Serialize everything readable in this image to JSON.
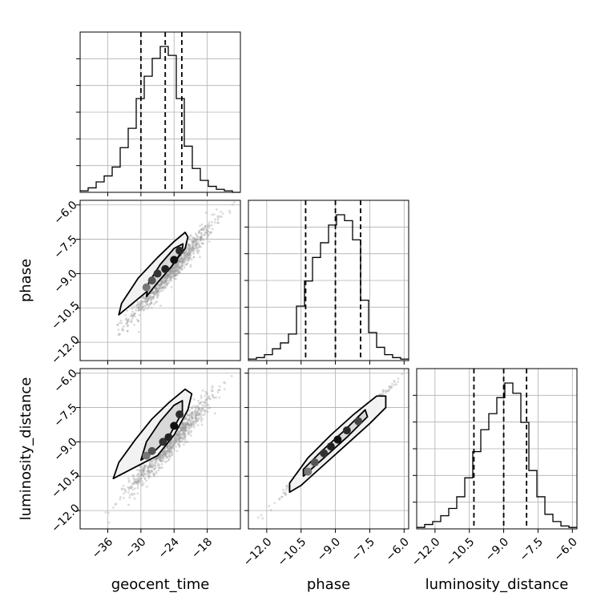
{
  "chart_data": {
    "type": "corner",
    "grid": true,
    "parameters": [
      "geocent_time",
      "phase",
      "luminosity_distance"
    ],
    "axis_labels": {
      "geocent_time": "geocent_time",
      "phase": "phase",
      "luminosity_distance": "luminosity_distance"
    },
    "ranges": {
      "geocent_time": [
        -41,
        -12
      ],
      "phase": [
        -12.8,
        -5.8
      ],
      "luminosity_distance": [
        -12.8,
        -5.8
      ]
    },
    "ticks": {
      "geocent_time": [
        -36,
        -30,
        -24,
        -18
      ],
      "phase": [
        -12.0,
        -10.5,
        -9.0,
        -7.5,
        -6.0
      ],
      "luminosity_distance": [
        -12.0,
        -10.5,
        -9.0,
        -7.5,
        -6.0
      ]
    },
    "tick_labels": {
      "geocent_time": [
        "−36",
        "−30",
        "−24",
        "−18"
      ],
      "phase": [
        "−12.0",
        "−10.5",
        "−9.0",
        "−7.5",
        "−6.0"
      ],
      "luminosity_distance": [
        "−12.0",
        "−10.5",
        "−9.0",
        "−7.5",
        "−6.0"
      ]
    },
    "histograms": [
      {
        "param": "geocent_time",
        "quantiles": [
          -30.0,
          -25.6,
          -22.6
        ],
        "bin_edges": [
          -41,
          -39.55,
          -38.1,
          -36.65,
          -35.2,
          -33.75,
          -32.3,
          -30.85,
          -29.4,
          -27.95,
          -26.5,
          -25.05,
          -23.6,
          -22.15,
          -20.7,
          -19.25,
          -17.8,
          -16.35,
          -14.9,
          -13.45,
          -12
        ],
        "counts": [
          0.01,
          0.03,
          0.07,
          0.11,
          0.17,
          0.3,
          0.43,
          0.63,
          0.78,
          0.9,
          0.98,
          0.92,
          0.63,
          0.31,
          0.16,
          0.08,
          0.04,
          0.02,
          0.01,
          0.0
        ]
      },
      {
        "param": "phase",
        "quantiles": [
          -10.3,
          -9.0,
          -7.9
        ],
        "bin_edges": [
          -12.8,
          -12.45,
          -12.1,
          -11.75,
          -11.4,
          -11.05,
          -10.7,
          -10.35,
          -10.0,
          -9.65,
          -9.3,
          -8.95,
          -8.6,
          -8.25,
          -7.9,
          -7.55,
          -7.2,
          -6.85,
          -6.5,
          -6.15,
          -5.8
        ],
        "counts": [
          0.01,
          0.02,
          0.04,
          0.08,
          0.12,
          0.18,
          0.37,
          0.54,
          0.7,
          0.8,
          0.92,
          0.99,
          0.95,
          0.82,
          0.41,
          0.19,
          0.09,
          0.04,
          0.02,
          0.01
        ]
      },
      {
        "param": "luminosity_distance",
        "quantiles": [
          -10.3,
          -9.0,
          -8.0
        ],
        "bin_edges": [
          -12.8,
          -12.45,
          -12.1,
          -11.75,
          -11.4,
          -11.05,
          -10.7,
          -10.35,
          -10.0,
          -9.65,
          -9.3,
          -8.95,
          -8.6,
          -8.25,
          -7.9,
          -7.55,
          -7.2,
          -6.85,
          -6.5,
          -6.15,
          -5.8
        ],
        "counts": [
          0.01,
          0.03,
          0.05,
          0.09,
          0.14,
          0.22,
          0.35,
          0.53,
          0.68,
          0.79,
          0.9,
          1.0,
          0.93,
          0.73,
          0.4,
          0.22,
          0.1,
          0.05,
          0.02,
          0.01
        ]
      }
    ],
    "scatter_panels": [
      {
        "x": "geocent_time",
        "y": "phase",
        "mean": [
          -24.5,
          -8.9
        ],
        "sd": [
          3.8,
          1.05
        ],
        "corr": 0.97,
        "contours": [
          [
            [
              -34.0,
              -10.8
            ],
            [
              -31.0,
              -10.2
            ],
            [
              -28.0,
              -9.6
            ],
            [
              -24.5,
              -8.7
            ],
            [
              -22.0,
              -7.9
            ],
            [
              -21.5,
              -7.4
            ],
            [
              -22.0,
              -7.2
            ],
            [
              -24.0,
              -7.6
            ],
            [
              -27.0,
              -8.3
            ],
            [
              -30.5,
              -9.2
            ],
            [
              -33.5,
              -10.3
            ],
            [
              -34.0,
              -10.8
            ]
          ],
          [
            [
              -29.0,
              -10.0
            ],
            [
              -27.0,
              -9.4
            ],
            [
              -24.5,
              -8.7
            ],
            [
              -22.5,
              -8.0
            ],
            [
              -22.4,
              -7.7
            ],
            [
              -24.0,
              -7.9
            ],
            [
              -26.5,
              -8.6
            ],
            [
              -28.6,
              -9.4
            ],
            [
              -29.0,
              -10.0
            ]
          ]
        ],
        "dense_points": [
          [
            -29.0,
            -9.6
          ],
          [
            -28.0,
            -9.3
          ],
          [
            -27.0,
            -9.0
          ],
          [
            -25.6,
            -8.8
          ],
          [
            -24.0,
            -8.4
          ],
          [
            -23.0,
            -8.0
          ]
        ]
      },
      {
        "x": "geocent_time",
        "y": "luminosity_distance",
        "mean": [
          -24.5,
          -9.0
        ],
        "sd": [
          3.8,
          1.05
        ],
        "corr": 0.96,
        "contours": [
          [
            [
              -35.0,
              -10.6
            ],
            [
              -31.0,
              -10.1
            ],
            [
              -27.0,
              -9.6
            ],
            [
              -24.0,
              -8.7
            ],
            [
              -21.5,
              -7.6
            ],
            [
              -20.8,
              -6.9
            ],
            [
              -22.0,
              -6.7
            ],
            [
              -25.0,
              -7.3
            ],
            [
              -28.0,
              -8.0
            ],
            [
              -31.0,
              -8.9
            ],
            [
              -34.0,
              -9.9
            ],
            [
              -35.0,
              -10.6
            ]
          ],
          [
            [
              -30.0,
              -9.8
            ],
            [
              -27.5,
              -9.4
            ],
            [
              -25.0,
              -8.8
            ],
            [
              -22.5,
              -7.7
            ],
            [
              -22.5,
              -7.2
            ],
            [
              -24.0,
              -7.4
            ],
            [
              -26.5,
              -8.1
            ],
            [
              -29.0,
              -9.0
            ],
            [
              -30.0,
              -9.8
            ]
          ]
        ],
        "dense_points": [
          [
            -29.0,
            -9.6
          ],
          [
            -28.0,
            -9.4
          ],
          [
            -26.0,
            -9.0
          ],
          [
            -25.0,
            -8.8
          ],
          [
            -24.0,
            -8.3
          ],
          [
            -23.0,
            -7.8
          ]
        ]
      },
      {
        "x": "phase",
        "y": "luminosity_distance",
        "mean": [
          -9.0,
          -9.0
        ],
        "sd": [
          1.05,
          1.05
        ],
        "corr": 0.995,
        "contours": [
          [
            [
              -11.0,
              -11.2
            ],
            [
              -10.5,
              -10.9
            ],
            [
              -9.5,
              -10.0
            ],
            [
              -8.5,
              -9.1
            ],
            [
              -7.5,
              -8.2
            ],
            [
              -6.8,
              -7.5
            ],
            [
              -6.8,
              -7.0
            ],
            [
              -7.2,
              -7.0
            ],
            [
              -8.2,
              -7.8
            ],
            [
              -9.2,
              -8.7
            ],
            [
              -10.2,
              -9.7
            ],
            [
              -11.0,
              -10.8
            ],
            [
              -11.0,
              -11.2
            ]
          ],
          [
            [
              -10.4,
              -10.5
            ],
            [
              -9.5,
              -9.7
            ],
            [
              -8.5,
              -8.8
            ],
            [
              -7.6,
              -7.9
            ],
            [
              -7.7,
              -7.6
            ],
            [
              -8.6,
              -8.5
            ],
            [
              -9.6,
              -9.4
            ],
            [
              -10.4,
              -10.2
            ],
            [
              -10.4,
              -10.5
            ]
          ]
        ],
        "dense_points": [
          [
            -10.2,
            -10.3
          ],
          [
            -9.9,
            -9.9
          ],
          [
            -9.5,
            -9.5
          ],
          [
            -9.2,
            -9.2
          ],
          [
            -8.9,
            -8.9
          ],
          [
            -8.5,
            -8.5
          ],
          [
            -8.0,
            -8.1
          ]
        ]
      }
    ]
  }
}
